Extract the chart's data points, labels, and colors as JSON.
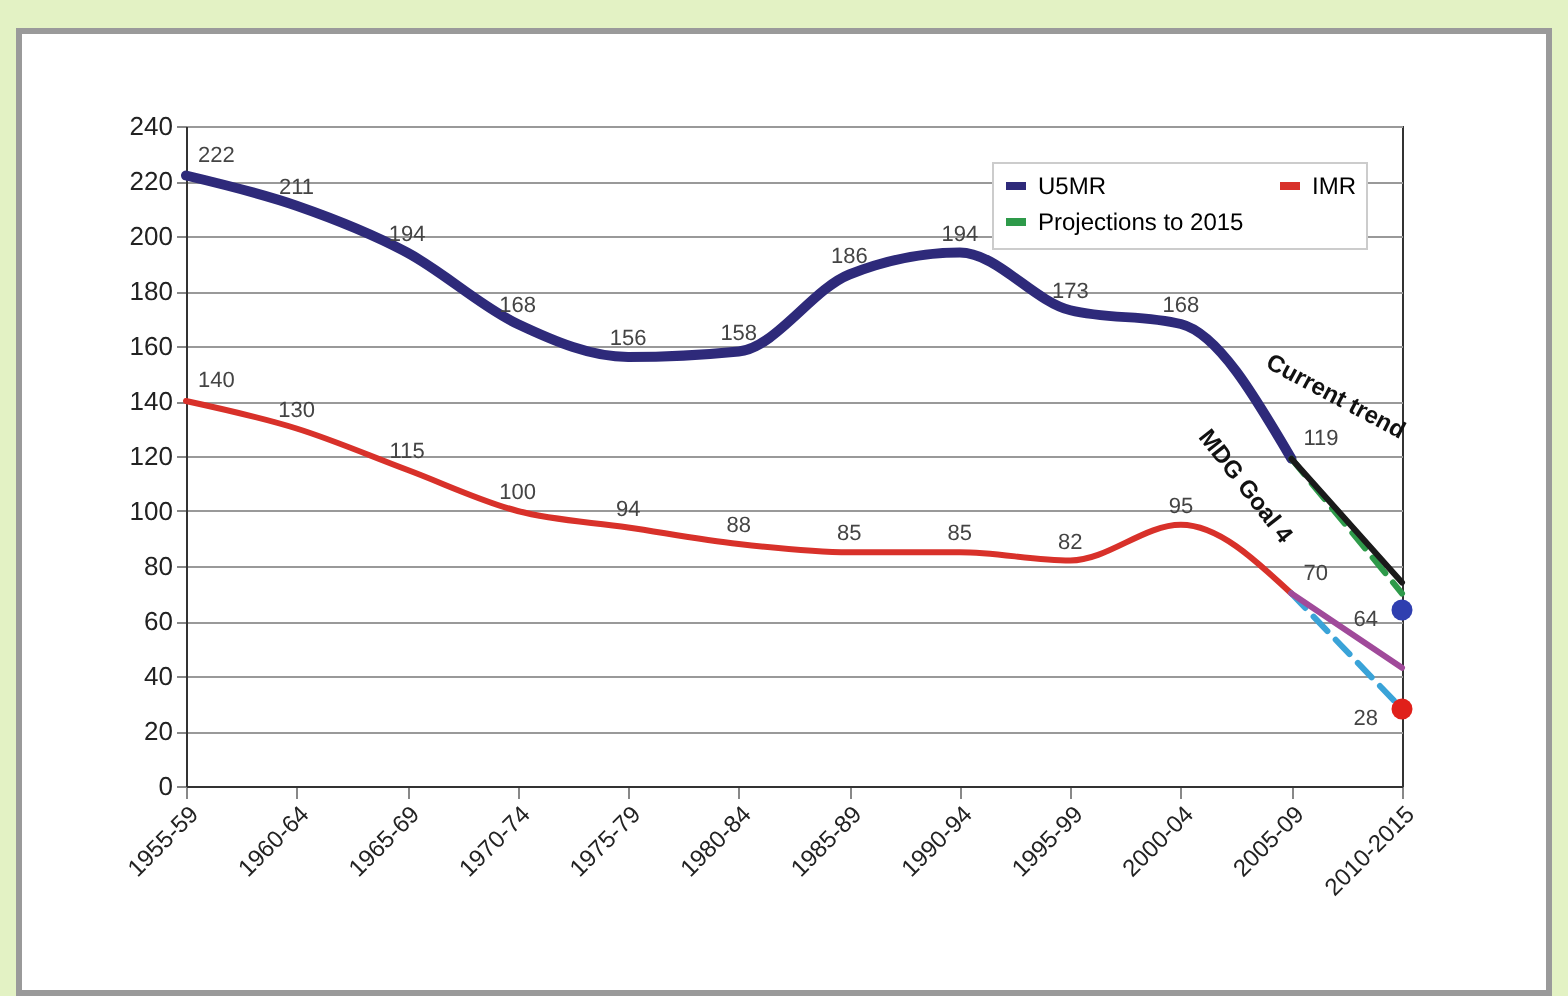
{
  "chart_data": {
    "type": "line",
    "categories": [
      "1955-59",
      "1960-64",
      "1965-69",
      "1970-74",
      "1975-79",
      "1980-84",
      "1985-89",
      "1990-94",
      "1995-99",
      "2000-04",
      "2005-09",
      "2010-2015"
    ],
    "ylim": [
      0,
      240
    ],
    "yticks": [
      0,
      20,
      40,
      60,
      80,
      100,
      120,
      140,
      160,
      180,
      200,
      220,
      240
    ],
    "grid": "y",
    "legend": "top right",
    "series": [
      {
        "name": "U5MR",
        "color": "#2e2a7a",
        "values": [
          222,
          211,
          194,
          168,
          156,
          158,
          186,
          194,
          173,
          168,
          119,
          null
        ],
        "value_labels": [
          "222",
          "211",
          "194",
          "168",
          "156",
          "158",
          "186",
          "194",
          "173",
          "168",
          "119",
          null
        ]
      },
      {
        "name": "IMR",
        "color": "#d8312a",
        "values": [
          140,
          130,
          115,
          100,
          94,
          88,
          85,
          85,
          82,
          95,
          70,
          null
        ],
        "value_labels": [
          "140",
          "130",
          "115",
          "100",
          "94",
          "88",
          "85",
          "85",
          "82",
          "95",
          "70",
          null
        ]
      },
      {
        "name": "Projections to 2015",
        "line_style": "dashed",
        "color": "#2e9a4a",
        "values": [
          null,
          null,
          null,
          null,
          null,
          null,
          null,
          null,
          null,
          null,
          119,
          70
        ]
      },
      {
        "color": "#1a1a1a",
        "values": [
          null,
          null,
          null,
          null,
          null,
          null,
          null,
          null,
          null,
          null,
          119,
          74
        ]
      },
      {
        "line_style": "dashed",
        "color": "#3aa3d8",
        "values": [
          null,
          null,
          null,
          null,
          null,
          null,
          null,
          null,
          null,
          null,
          70,
          28
        ]
      },
      {
        "color": "#a04a9a",
        "values": [
          null,
          null,
          null,
          null,
          null,
          null,
          null,
          null,
          null,
          null,
          70,
          43
        ]
      },
      {
        "type": "scatter",
        "color": "#2f3fb0",
        "values": [
          null,
          null,
          null,
          null,
          null,
          null,
          null,
          null,
          null,
          null,
          null,
          64
        ],
        "value_labels": [
          null,
          null,
          null,
          null,
          null,
          null,
          null,
          null,
          null,
          null,
          null,
          "64"
        ]
      },
      {
        "type": "scatter",
        "color": "#e0201a",
        "values": [
          null,
          null,
          null,
          null,
          null,
          null,
          null,
          null,
          null,
          null,
          null,
          28
        ],
        "value_labels": [
          null,
          null,
          null,
          null,
          null,
          null,
          null,
          null,
          null,
          null,
          null,
          "28"
        ]
      }
    ],
    "annotations": [
      "Current trend",
      "MDG Goal 4"
    ]
  }
}
